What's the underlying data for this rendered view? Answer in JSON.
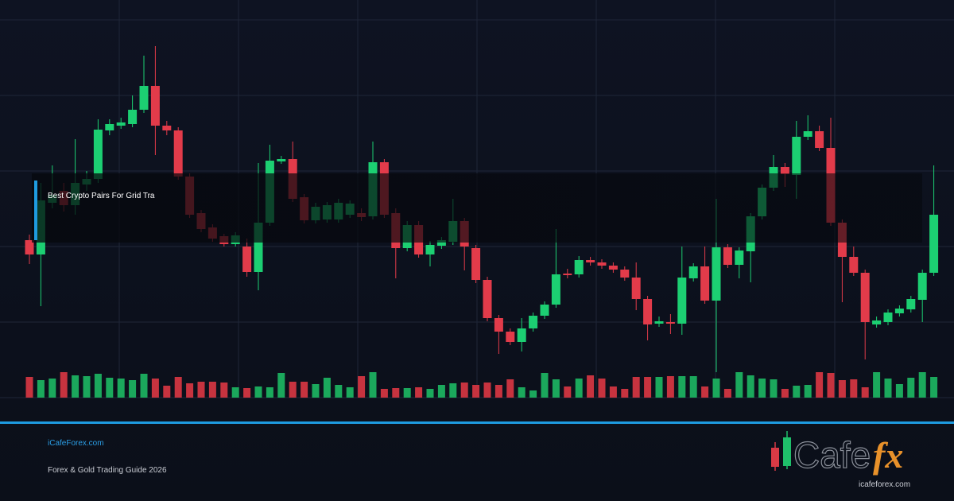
{
  "overlay": {
    "title": "Best Crypto Pairs For Grid Tra"
  },
  "footer": {
    "site": "iCafeForex.com",
    "tagline": "Forex & Gold Trading Guide 2026"
  },
  "logo": {
    "word": "Cafe",
    "accent": "fx",
    "url": "icafeforex.com"
  }
}
